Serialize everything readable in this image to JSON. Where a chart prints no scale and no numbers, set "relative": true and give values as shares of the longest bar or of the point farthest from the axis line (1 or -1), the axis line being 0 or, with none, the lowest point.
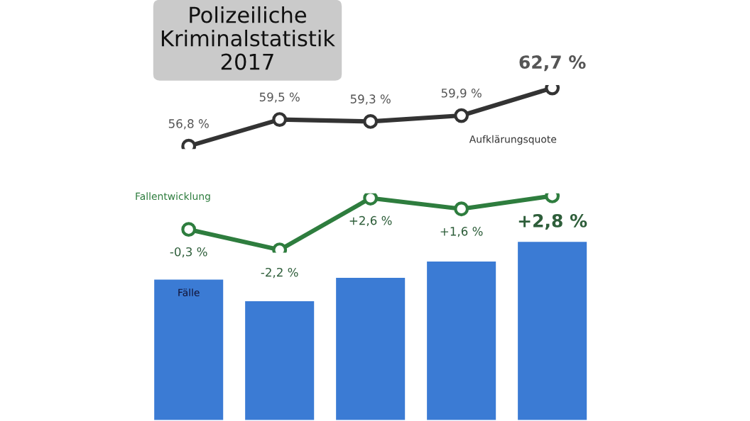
{
  "chart_data": [
    {
      "type": "line",
      "title": "Polizeiliche\nKriminalstatistik\n2017",
      "categories": [
        null,
        null,
        null,
        null,
        null
      ],
      "marker": "circle",
      "series": [
        {
          "name": "Aufklärungsquote",
          "color": "#333333",
          "values": [
            56.8,
            59.5,
            59.3,
            59.9,
            62.7
          ],
          "value_labels": [
            "56,8 %",
            "59,5 %",
            "59,3 %",
            "59,9 %",
            "62,7 %"
          ]
        }
      ]
    },
    {
      "type": "line",
      "categories": [
        null,
        null,
        null,
        null,
        null
      ],
      "marker": "circle",
      "series": [
        {
          "name": "Fallentwicklung",
          "color": "#2e7d3e",
          "values": [
            -0.3,
            -2.2,
            2.6,
            1.6,
            2.8
          ],
          "value_labels": [
            "-0,3 %",
            "-2,2 %",
            "+2,6 %",
            "+1,6 %",
            "+2,8 %"
          ]
        }
      ]
    },
    {
      "type": "bar",
      "relative": true,
      "categories": [
        null,
        null,
        null,
        null,
        null
      ],
      "series": [
        {
          "name": "Fälle",
          "color": "#3b7bd4",
          "values": [
            0.79,
            0.67,
            0.8,
            0.89,
            1
          ]
        }
      ]
    }
  ]
}
